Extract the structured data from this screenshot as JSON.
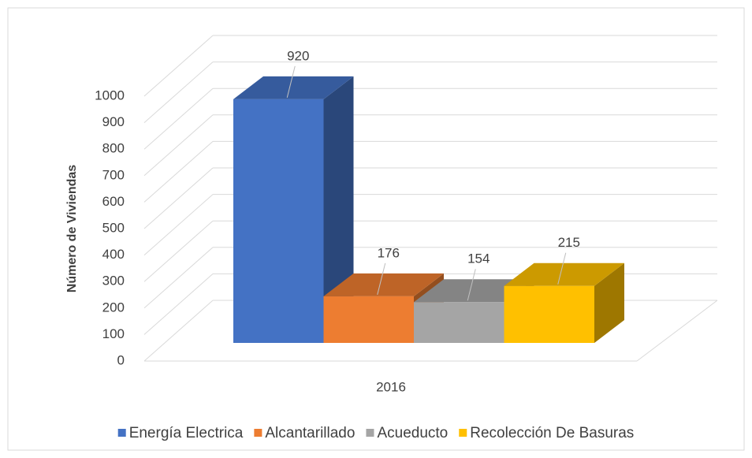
{
  "chart_data": {
    "type": "bar3d",
    "categories": [
      "2016"
    ],
    "ylabel": "Número de Viviendas",
    "ylim": [
      0,
      1000
    ],
    "yticks": [
      0,
      100,
      200,
      300,
      400,
      500,
      600,
      700,
      800,
      900,
      1000
    ],
    "grid": true,
    "legend": "bottom",
    "series": [
      {
        "name": "Energía Electrica",
        "color": "#4472c4",
        "values": [
          920
        ]
      },
      {
        "name": "Alcantarillado",
        "color": "#ed7d31",
        "values": [
          176
        ]
      },
      {
        "name": "Acueducto",
        "color": "#a5a5a5",
        "values": [
          154
        ]
      },
      {
        "name": "Recolección De Basuras",
        "color": "#ffc000",
        "values": [
          215
        ]
      }
    ]
  }
}
